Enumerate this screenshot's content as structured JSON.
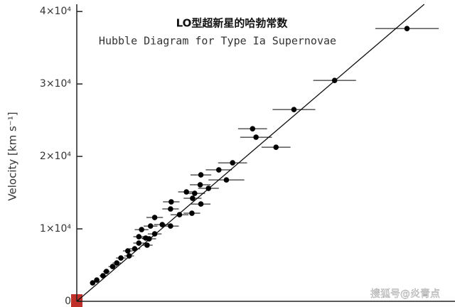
{
  "chart_data": {
    "type": "scatter",
    "title": "LO型超新星的哈勃常数",
    "subtitle": "Hubble Diagram for Type Ia Supernovae",
    "y_label": "Velocity [km s⁻¹]",
    "watermark": "搜狐号@炎青点",
    "xlim": [
      0,
      528
    ],
    "ylim": [
      0,
      41000
    ],
    "yticks": [
      0,
      {
        "value": 10000,
        "label": "1×10⁴"
      },
      {
        "value": 20000,
        "label": "2×10⁴"
      },
      {
        "value": 30000,
        "label": "3×10⁴"
      },
      {
        "value": 40000,
        "label": "4×10⁴"
      }
    ],
    "color": "#000000",
    "fit_line": {
      "x": [
        0,
        504
      ],
      "values": [
        0,
        41000
      ]
    },
    "series": [
      {
        "x": [
          479,
          374,
          315,
          255,
          260,
          289,
          226,
          206,
          217,
          180,
          179,
          191,
          159,
          171,
          168,
          180,
          137,
          167,
          136,
          149,
          113,
          124,
          136,
          107,
          94,
          113,
          105,
          102,
          90,
          84,
          74,
          76,
          64,
          58,
          52,
          43,
          38,
          29,
          23,
          100,
          90
        ],
        "values": [
          37650,
          30490,
          26470,
          23820,
          22650,
          21270,
          19120,
          18140,
          16760,
          17450,
          16080,
          15590,
          15100,
          14900,
          14220,
          13430,
          13730,
          12160,
          12750,
          11960,
          11570,
          10590,
          10390,
          10390,
          9900,
          9310,
          8630,
          7750,
          8040,
          7250,
          6960,
          6270,
          5980,
          5290,
          4800,
          4120,
          3530,
          2940,
          2550,
          8730,
          8920
        ],
        "x_err": [
          46,
          31,
          31,
          21,
          23,
          21,
          21,
          19,
          26,
          15,
          15,
          15,
          12,
          15,
          13,
          14,
          12,
          12,
          12,
          13,
          12,
          12,
          12,
          10,
          10,
          10,
          10,
          8,
          8,
          8,
          7,
          7,
          7,
          6,
          6,
          5,
          5,
          4,
          4,
          8,
          8
        ]
      }
    ]
  }
}
